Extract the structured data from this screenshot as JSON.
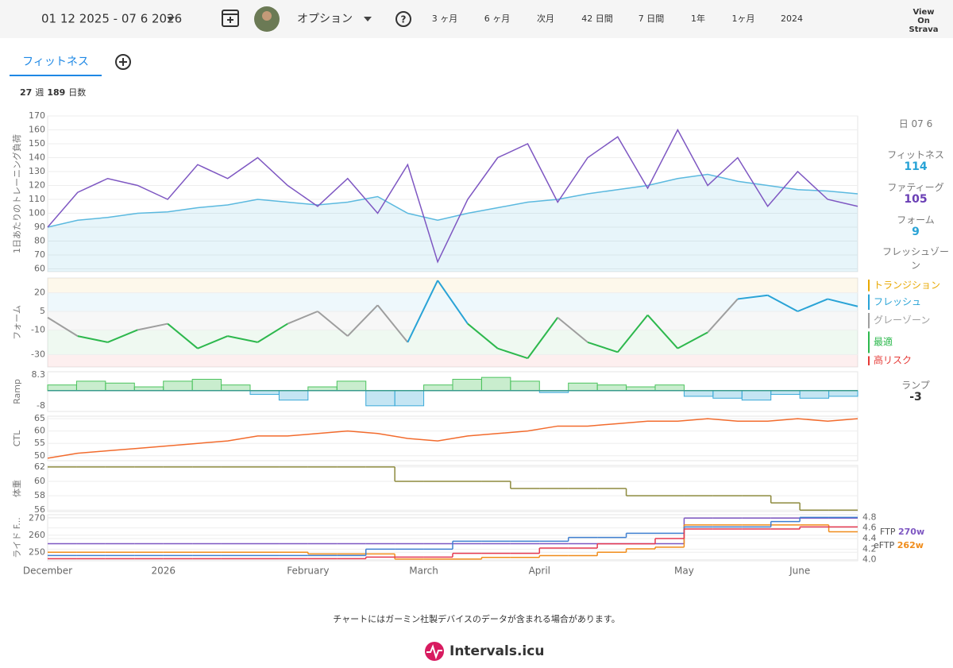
{
  "toolbar": {
    "date_range": "01 12 2025 - 07 6 2026",
    "options": "オプション",
    "periods": [
      "3 ヶ月",
      "6 ヶ月",
      "次月",
      "42 日間",
      "7 日間",
      "1年",
      "1ヶ月",
      "2024"
    ],
    "strava": "View On Strava"
  },
  "tabs": {
    "active": "フィットネス"
  },
  "summary": {
    "weeks": 27,
    "weeks_unit": "週",
    "days": 189,
    "days_unit": "日数"
  },
  "side_panel": {
    "date": "日 07 6"
  },
  "chart_data": [
    {
      "type": "line",
      "ylabel": "1日あたりのトレーニング負荷",
      "ylim": [
        58,
        170
      ],
      "yticks": [
        60,
        70,
        80,
        90,
        100,
        110,
        120,
        130,
        140,
        150,
        160,
        170
      ],
      "grid": true,
      "series": [
        {
          "name": "フィットネス",
          "color": "#5bb9df",
          "style": "area",
          "values": [
            90,
            95,
            97,
            100,
            101,
            104,
            106,
            110,
            108,
            106,
            108,
            112,
            100,
            95,
            100,
            104,
            108,
            110,
            114,
            117,
            120,
            125,
            128,
            123,
            120,
            117,
            116,
            114
          ],
          "current": 114
        },
        {
          "name": "ファティーグ",
          "color": "#7e57c2",
          "values": [
            90,
            115,
            125,
            120,
            110,
            135,
            125,
            140,
            120,
            105,
            125,
            100,
            135,
            65,
            110,
            140,
            150,
            108,
            140,
            155,
            118,
            160,
            120,
            140,
            105,
            130,
            110,
            105
          ],
          "current": 105
        }
      ]
    },
    {
      "type": "line",
      "ylabel": "フォーム",
      "ylim": [
        -40,
        32
      ],
      "yticks": [
        20,
        5,
        -10,
        -30
      ],
      "grid": true,
      "zones": [
        {
          "name": "トランジション",
          "color": "#e8a800",
          "min": 20
        },
        {
          "name": "フレッシュ",
          "color": "#29a3d6",
          "min": 5
        },
        {
          "name": "グレーゾーン",
          "color": "#9e9e9e",
          "min": -10
        },
        {
          "name": "最適",
          "color": "#2db84d",
          "min": -30
        },
        {
          "name": "高リスク",
          "color": "#e53935"
        }
      ],
      "series": [
        {
          "name": "フォーム",
          "values": [
            0,
            -15,
            -20,
            -10,
            -5,
            -25,
            -15,
            -20,
            -5,
            5,
            -15,
            10,
            -20,
            30,
            -5,
            -25,
            -33,
            0,
            -20,
            -28,
            2,
            -25,
            -12,
            15,
            18,
            5,
            15,
            9
          ],
          "current": 9
        }
      ],
      "current_zone": "フレッシュゾーン"
    },
    {
      "type": "bar",
      "ylabel": "Ramp",
      "ylim": [
        -11,
        10
      ],
      "yticks": [
        8.3,
        -8
      ],
      "series": [
        {
          "name": "ランプ",
          "color": "#4cc35e",
          "negative_color": "#3aa9d8",
          "values": [
            3,
            5,
            4,
            2,
            5,
            6,
            3,
            -2,
            -5,
            2,
            5,
            -8,
            -8,
            3,
            6,
            7,
            5,
            -1,
            4,
            3,
            2,
            3,
            -3,
            -4,
            -5,
            -2,
            -4,
            -3
          ],
          "current": -3
        }
      ]
    },
    {
      "type": "line",
      "ylabel": "CTL",
      "ylim": [
        48,
        66
      ],
      "yticks": [
        50,
        55,
        60,
        65
      ],
      "grid": true,
      "series": [
        {
          "color": "#f26b2d",
          "values": [
            49,
            51,
            52,
            53,
            54,
            55,
            56,
            58,
            58,
            59,
            60,
            59,
            57,
            56,
            58,
            59,
            60,
            62,
            62,
            63,
            64,
            64,
            65,
            64,
            64,
            65,
            64,
            65
          ]
        }
      ]
    },
    {
      "type": "step",
      "ylabel": "体重",
      "ylim": [
        55.8,
        62.2
      ],
      "yticks": [
        56,
        58,
        60,
        62
      ],
      "grid": true,
      "series": [
        {
          "color": "#8d8a3e",
          "values": [
            62,
            62,
            62,
            62,
            62,
            62,
            62,
            62,
            62,
            62,
            62,
            62,
            60,
            60,
            60,
            60,
            59,
            59,
            59,
            59,
            58,
            58,
            58,
            58,
            58,
            57,
            56,
            56
          ]
        }
      ]
    },
    {
      "type": "step",
      "ylabel": "ライド F...",
      "ylim": [
        245,
        272
      ],
      "yticks": [
        250,
        260,
        270
      ],
      "y2lim": [
        3.98,
        4.85
      ],
      "y2ticks": [
        {
          "value": 4,
          "label": "4.0"
        },
        4.2,
        4.4,
        4.6,
        4.8
      ],
      "grid": true,
      "categories": [
        "December",
        null,
        null,
        null,
        "2026",
        null,
        null,
        null,
        null,
        "February",
        null,
        null,
        null,
        "March",
        null,
        null,
        null,
        "April",
        null,
        null,
        null,
        null,
        "May",
        null,
        null,
        null,
        "June",
        null
      ],
      "series": [
        {
          "name": "FTP",
          "color": "#7e57c2",
          "values": [
            255,
            255,
            255,
            255,
            255,
            255,
            255,
            255,
            255,
            255,
            255,
            255,
            255,
            255,
            255,
            255,
            255,
            255,
            255,
            255,
            255,
            255,
            270,
            270,
            270,
            270,
            270,
            270
          ],
          "current": "270w"
        },
        {
          "name": "eFTP",
          "color": "#f08c1a",
          "values": [
            250,
            250,
            250,
            250,
            250,
            250,
            250,
            250,
            250,
            249,
            249,
            249,
            246,
            246,
            246,
            247,
            247,
            248,
            248,
            250,
            252,
            253,
            266,
            266,
            266,
            266,
            266,
            262
          ],
          "current": "262w"
        },
        {
          "color": "#3f7fd0",
          "axis": "y2",
          "values": [
            4.08,
            4.08,
            4.08,
            4.08,
            4.08,
            4.08,
            4.08,
            4.08,
            4.08,
            4.08,
            4.08,
            4.2,
            4.2,
            4.2,
            4.35,
            4.35,
            4.35,
            4.35,
            4.42,
            4.42,
            4.5,
            4.5,
            4.62,
            4.62,
            4.62,
            4.72,
            4.8,
            4.8
          ]
        },
        {
          "color": "#e53950",
          "axis": "y2",
          "values": [
            4.02,
            4.02,
            4.02,
            4.02,
            4.02,
            4.02,
            4.02,
            4.02,
            4.02,
            4.02,
            4.02,
            4.05,
            4.05,
            4.05,
            4.12,
            4.12,
            4.12,
            4.22,
            4.22,
            4.3,
            4.3,
            4.4,
            4.58,
            4.58,
            4.58,
            4.58,
            4.62,
            4.62
          ]
        }
      ]
    }
  ],
  "footer": {
    "note": "チャートにはガーミン社製デバイスのデータが含まれる場合があります。",
    "brand": "Intervals.icu"
  }
}
